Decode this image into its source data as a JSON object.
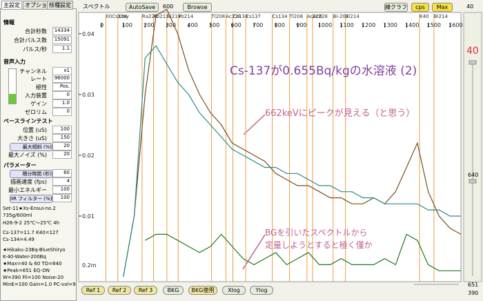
{
  "tabs": [
    "主設定",
    "オプション",
    "核種設定"
  ],
  "info": {
    "title": "情報",
    "rows": [
      {
        "label": "合計秒数",
        "value": 14334
      },
      {
        "label": "合計パルス数",
        "value": 15091
      },
      {
        "label": "パルス/秒",
        "value": 1.1
      }
    ]
  },
  "audio": {
    "title": "音声入力",
    "rows": [
      {
        "label": "チャンネル",
        "value": "x1"
      },
      {
        "label": "レート",
        "value": 96000
      },
      {
        "label": "極性",
        "value": "Pos."
      },
      {
        "label": "入力装置",
        "value": 0
      },
      {
        "label": "ゲイン",
        "value": "1.0"
      },
      {
        "label": "ゼロリム",
        "value": 0
      }
    ]
  },
  "baseline": {
    "title": "ベースラインテスト",
    "rows": [
      {
        "label": "位置 (uS)",
        "value": 100
      },
      {
        "label": "大きさ (uS)",
        "value": 150
      },
      {
        "label": "最大傾斜 (%)",
        "value": 20,
        "button": true
      },
      {
        "label": "最大ノイズ (%)",
        "value": 20
      }
    ]
  },
  "params": {
    "title": "パラメーター",
    "rows": [
      {
        "label": "積分時間 (秒)",
        "value": 60,
        "button": true
      },
      {
        "label": "描画速度 (fps)",
        "value": 4
      },
      {
        "label": "最小エネルギー",
        "value": 100
      },
      {
        "label": "IIR フィルター (%)",
        "value": 100,
        "button": true
      }
    ]
  },
  "notes": [
    "Set-11★Xs-Ensui-no.2",
    "735g/600ml",
    "H26-9-2  25℃〜25℃ 4h",
    "Cs-137=11.7        K40=127",
    "Cs-134=4.49",
    "★Hikaku-23Bq-BlueShiryo",
    "  K-40-Water-200Bq",
    "★Max=40 & 60  TD=640",
    "★Peak=651 EQ-ON",
    "W=390 Fil=100  Noise-20",
    "MinE=100 Gain=1.0 PC-vol=9"
  ],
  "toolbar": {
    "title": "スペクトル",
    "autosave": "AutoSave",
    "autosave_value": 600,
    "browse": "Browse",
    "graph": "線クラフ",
    "cps": "cps",
    "max": "Max",
    "max_value": 40
  },
  "bottom_buttons": [
    "Ref 1",
    "Ref 2",
    "Ref 3",
    "BKG",
    "BKG使用",
    "Xlog",
    "Ylog"
  ],
  "right_panel": {
    "top": 40,
    "middle": 640,
    "bottom_a": 651,
    "bottom_b": 390
  },
  "chart_data": {
    "type": "line",
    "x": [
      100,
      150,
      200,
      250,
      300,
      350,
      400,
      450,
      500,
      550,
      600,
      650,
      700,
      750,
      800,
      850,
      900,
      950,
      1000,
      1050,
      1100,
      1150,
      1200,
      1250,
      1300,
      1350,
      1400,
      1450,
      1500,
      1550,
      1600,
      1650
    ],
    "series": [
      {
        "color": "#7a4a1e",
        "values": [
          0,
          0.01,
          0.03,
          0.043,
          0.044,
          0.04,
          0.034,
          0.03,
          0.027,
          0.025,
          0.022,
          0.021,
          0.02,
          0.019,
          0.017,
          0.016,
          0.015,
          0.015,
          0.014,
          0.013,
          0.013,
          0.012,
          0.012,
          0.013,
          0.012,
          0.014,
          0.018,
          0.022,
          0.014,
          0.01,
          0.008,
          0.007
        ]
      },
      {
        "color": "#2a8a8a",
        "values": [
          0,
          0.01,
          0.036,
          0.038,
          0.035,
          0.032,
          0.03,
          0.027,
          0.025,
          0.023,
          0.021,
          0.02,
          0.019,
          0.018,
          0.018,
          0.017,
          0.017,
          0.016,
          0.015,
          0.015,
          0.014,
          0.014,
          0.013,
          0.013,
          0.012,
          0.012,
          0.012,
          0.012,
          0.011,
          0.011,
          0.01,
          0.01
        ]
      },
      {
        "color": "#1e7a1e",
        "values": [
          null,
          null,
          0.006,
          0.007,
          0.007,
          0.006,
          0.005,
          0.004,
          0.005,
          0.007,
          0.005,
          0.003,
          0.002,
          0.003,
          0.004,
          0.002,
          0.003,
          0.004,
          0.002,
          0.002,
          0.003,
          0.002,
          0.002,
          0.002,
          0.003,
          0.002,
          0.007,
          0.006,
          0.002,
          0.001,
          0.001,
          0.001
        ]
      }
    ],
    "xlim": [
      -105,
      1650
    ],
    "xticks": [
      0,
      100,
      200,
      300,
      400,
      500,
      600,
      700,
      800,
      900,
      1000,
      1100,
      1200,
      1300,
      1400,
      1500,
      1600
    ],
    "ylim": [
      0,
      0.0435
    ],
    "yticks": [
      0.01,
      0.02,
      0.03,
      0.04
    ],
    "secondary_label": "0.2m",
    "markers": [
      {
        "label": "00Cs138",
        "channel": 20
      },
      {
        "label": "Xray",
        "channel": 75
      },
      {
        "label": "Ra226",
        "channel": 186
      },
      {
        "label": "Pb212",
        "channel": 239
      },
      {
        "label": "Bi214",
        "channel": 300
      },
      {
        "label": "Pb214",
        "channel": 352
      },
      {
        "label": "Tl208",
        "channel": 505
      },
      {
        "label": "Ac228",
        "channel": 571
      },
      {
        "label": "Cs134",
        "channel": 603
      },
      {
        "label": "Cs137",
        "channel": 662
      },
      {
        "label": "Cs134",
        "channel": 784
      },
      {
        "label": "Tl208",
        "channel": 863
      },
      {
        "label": "Ac228",
        "channel": 943
      },
      {
        "label": "Ac228",
        "channel": 969
      },
      {
        "label": "Bi-207",
        "channel": 1063
      },
      {
        "label": "Bi214",
        "channel": 1120
      },
      {
        "label": "K40",
        "channel": 1460
      },
      {
        "label": "Bi214",
        "channel": 1526
      }
    ],
    "annotations": [
      "Cs-137が0.655Bq/kgの水溶液 (2)",
      "662keVにピークが見える（と思う）",
      "BGを引いたスペクトルから",
      "定量しようとすると極く僅か"
    ]
  }
}
